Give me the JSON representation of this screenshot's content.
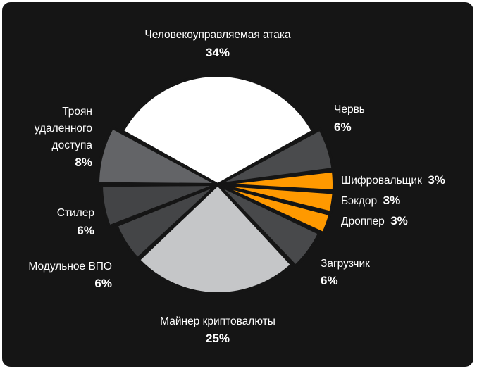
{
  "chart_data": {
    "type": "pie",
    "title": "",
    "slices": [
      {
        "label": "Человекоуправляемая атака",
        "percent_label": "34%",
        "value": 34,
        "color": "#ffffff"
      },
      {
        "label": "Червь",
        "percent_label": "6%",
        "value": 6,
        "color": "#4a4b4d"
      },
      {
        "label": "Шифровальщик",
        "percent_label": "3%",
        "value": 3,
        "color": "#ff9900"
      },
      {
        "label": "Бэкдор",
        "percent_label": "3%",
        "value": 3,
        "color": "#ff9900"
      },
      {
        "label": "Дроппер",
        "percent_label": "3%",
        "value": 3,
        "color": "#ff9900"
      },
      {
        "label": "Загрузчик",
        "percent_label": "6%",
        "value": 6,
        "color": "#48494b"
      },
      {
        "label": "Майнер криптовалюты",
        "percent_label": "25%",
        "value": 25,
        "color": "#c5c6c8"
      },
      {
        "label": "Модульное ВПО",
        "percent_label": "6%",
        "value": 6,
        "color": "#444547"
      },
      {
        "label": "Стилер",
        "percent_label": "6%",
        "value": 6,
        "color": "#434446"
      },
      {
        "label": "Троян удаленного доступа",
        "percent_label": "8%",
        "value": 8,
        "color": "#636467"
      }
    ]
  }
}
